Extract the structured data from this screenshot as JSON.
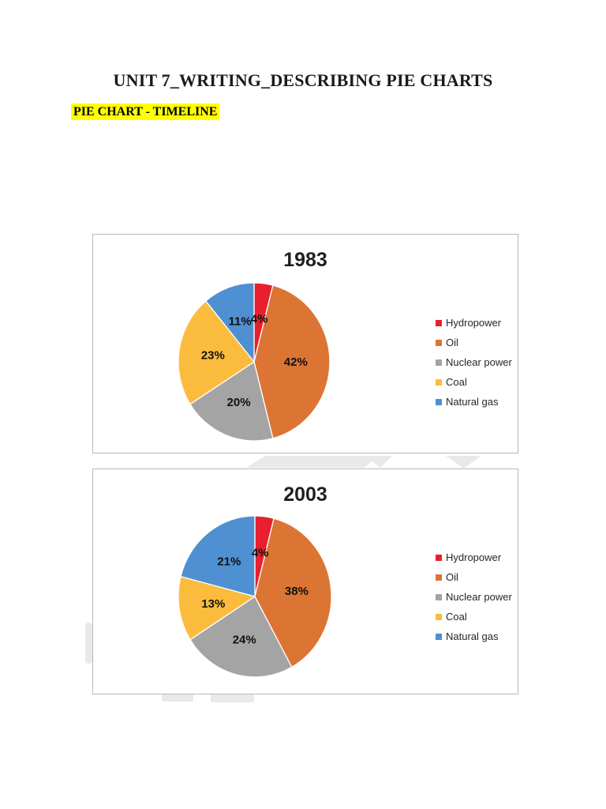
{
  "page": {
    "title": "UNIT 7_WRITING_DESCRIBING PIE CHARTS",
    "subtitle": "PIE CHART - TIMELINE",
    "subtitle_highlight_color": "#ffff00",
    "background_color": "#ffffff"
  },
  "chart_data": [
    {
      "type": "pie",
      "title": "1983",
      "categories": [
        "Hydropower",
        "Oil",
        "Nuclear power",
        "Coal",
        "Natural gas"
      ],
      "values": [
        4,
        42,
        20,
        23,
        11
      ],
      "labels": [
        "4%",
        "42%",
        "20%",
        "23%",
        "11%"
      ],
      "colors": [
        "#e8202d",
        "#dc7434",
        "#a4a4a4",
        "#fbbc3d",
        "#4e90d1"
      ],
      "legend_position": "right",
      "start_angle_deg": 0,
      "direction": "clockwise"
    },
    {
      "type": "pie",
      "title": "2003",
      "categories": [
        "Hydropower",
        "Oil",
        "Nuclear power",
        "Coal",
        "Natural gas"
      ],
      "values": [
        4,
        38,
        24,
        13,
        21
      ],
      "labels": [
        "4%",
        "38%",
        "24%",
        "13%",
        "21%"
      ],
      "colors": [
        "#e8202d",
        "#dc7434",
        "#a4a4a4",
        "#fbbc3d",
        "#4e90d1"
      ],
      "legend_position": "right",
      "start_angle_deg": 0,
      "direction": "clockwise"
    }
  ]
}
